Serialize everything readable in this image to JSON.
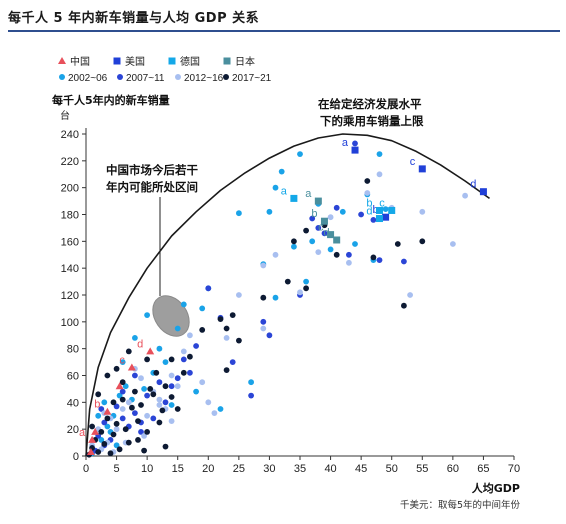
{
  "page": {
    "title": "每千人 5 年内新车销量与人均 GDP 关系"
  },
  "chart_data": {
    "type": "scatter",
    "ylabel": "每千人5年内的新车销量",
    "yunit": "台",
    "xlabel": "人均GDP",
    "xunit_note": "千美元：取每5年的中间年份",
    "xlim": [
      0,
      70
    ],
    "ylim": [
      0,
      240
    ],
    "xticks": [
      0,
      5,
      10,
      15,
      20,
      25,
      30,
      35,
      40,
      45,
      50,
      55,
      60,
      65,
      70
    ],
    "yticks": [
      0,
      20,
      40,
      60,
      80,
      100,
      120,
      140,
      160,
      180,
      200,
      220,
      240
    ],
    "grid": false,
    "legend_position": "top-left",
    "annotations": {
      "upper_limit": [
        "在给定经济发展水平",
        "下的乘用车销量上限"
      ],
      "china_range": [
        "中国市场今后若干",
        "年内可能所处区间"
      ]
    },
    "country_legend": [
      {
        "name": "中国",
        "marker": "triangle",
        "color": "#e8505b"
      },
      {
        "name": "美国",
        "marker": "square",
        "color": "#2040d8"
      },
      {
        "name": "德国",
        "marker": "square",
        "color": "#14a8e8"
      },
      {
        "name": "日本",
        "marker": "square",
        "color": "#4a8f9e"
      }
    ],
    "series": [
      {
        "name": "2002~06",
        "color": "#1aa3e8",
        "points": [
          [
            1.0,
            2
          ],
          [
            2.5,
            12
          ],
          [
            3.5,
            22
          ],
          [
            4.5,
            30
          ],
          [
            5.5,
            45
          ],
          [
            6.5,
            52
          ],
          [
            7.5,
            42
          ],
          [
            2.0,
            30
          ],
          [
            3.0,
            40
          ],
          [
            4.0,
            18
          ],
          [
            5.0,
            8
          ],
          [
            9.5,
            50
          ],
          [
            11,
            62
          ],
          [
            13,
            70
          ],
          [
            15,
            95
          ],
          [
            16,
            113
          ],
          [
            19,
            110
          ],
          [
            20,
            125
          ],
          [
            25,
            181
          ],
          [
            29,
            143
          ],
          [
            30,
            182
          ],
          [
            31,
            200
          ],
          [
            32,
            212
          ],
          [
            35,
            225
          ],
          [
            34,
            156
          ],
          [
            37,
            160
          ],
          [
            38,
            188
          ],
          [
            40,
            154
          ],
          [
            42,
            182
          ],
          [
            44,
            158
          ],
          [
            46,
            195
          ],
          [
            47,
            146
          ],
          [
            48,
            225
          ],
          [
            49,
            184
          ],
          [
            31,
            118
          ],
          [
            36,
            130
          ],
          [
            27,
            55
          ],
          [
            8,
            88
          ],
          [
            10,
            105
          ],
          [
            12,
            80
          ],
          [
            6,
            70
          ],
          [
            14,
            38
          ],
          [
            18,
            48
          ],
          [
            22,
            35
          ]
        ]
      },
      {
        "name": "2007~11",
        "color": "#2b45d6",
        "points": [
          [
            1.5,
            4
          ],
          [
            2.0,
            15
          ],
          [
            3.0,
            25
          ],
          [
            4.0,
            12
          ],
          [
            5.0,
            37
          ],
          [
            6.0,
            28
          ],
          [
            7.0,
            22
          ],
          [
            8.0,
            32
          ],
          [
            9.0,
            18
          ],
          [
            10,
            45
          ],
          [
            11,
            28
          ],
          [
            12,
            55
          ],
          [
            13,
            40
          ],
          [
            14,
            52
          ],
          [
            15,
            58
          ],
          [
            16,
            72
          ],
          [
            18,
            82
          ],
          [
            20,
            125
          ],
          [
            24,
            70
          ],
          [
            27,
            45
          ],
          [
            29,
            100
          ],
          [
            30,
            90
          ],
          [
            35,
            120
          ],
          [
            37,
            177
          ],
          [
            38,
            170
          ],
          [
            39,
            166
          ],
          [
            41,
            185
          ],
          [
            43,
            150
          ],
          [
            44,
            233
          ],
          [
            45,
            180
          ],
          [
            47,
            176
          ],
          [
            48,
            146
          ],
          [
            52,
            145
          ],
          [
            22,
            103
          ],
          [
            17,
            62
          ],
          [
            6,
            48
          ],
          [
            3,
            8
          ],
          [
            2.5,
            35
          ],
          [
            8,
            60
          ],
          [
            9,
            25
          ]
        ]
      },
      {
        "name": "2012~16",
        "color": "#a8bff0",
        "points": [
          [
            1.0,
            8
          ],
          [
            2.0,
            20
          ],
          [
            3.0,
            32
          ],
          [
            3.5,
            10
          ],
          [
            4.0,
            28
          ],
          [
            5.0,
            20
          ],
          [
            6.0,
            35
          ],
          [
            7.0,
            40
          ],
          [
            8.0,
            65
          ],
          [
            9.0,
            58
          ],
          [
            10,
            30
          ],
          [
            11,
            48
          ],
          [
            12,
            42
          ],
          [
            13,
            35
          ],
          [
            14,
            60
          ],
          [
            15,
            52
          ],
          [
            16,
            78
          ],
          [
            17,
            90
          ],
          [
            19,
            55
          ],
          [
            20,
            40
          ],
          [
            21,
            32
          ],
          [
            23,
            88
          ],
          [
            25,
            120
          ],
          [
            29,
            95
          ],
          [
            29,
            142
          ],
          [
            31,
            150
          ],
          [
            35,
            122
          ],
          [
            38,
            152
          ],
          [
            40,
            178
          ],
          [
            43,
            144
          ],
          [
            46,
            196
          ],
          [
            48,
            210
          ],
          [
            50,
            185
          ],
          [
            53,
            120
          ],
          [
            55,
            182
          ],
          [
            60,
            158
          ],
          [
            62,
            194
          ],
          [
            4.5,
            3
          ],
          [
            2.5,
            5
          ],
          [
            9.5,
            15
          ],
          [
            12,
            38
          ],
          [
            14,
            26
          ],
          [
            6.5,
            10
          ]
        ]
      },
      {
        "name": "2017~21",
        "color": "#0d1a33",
        "points": [
          [
            0.5,
            1
          ],
          [
            1.0,
            6
          ],
          [
            1.5,
            12
          ],
          [
            2.0,
            3
          ],
          [
            2.5,
            18
          ],
          [
            3.0,
            9
          ],
          [
            3.5,
            28
          ],
          [
            4.0,
            2
          ],
          [
            4.5,
            16
          ],
          [
            5.0,
            24
          ],
          [
            5.5,
            5
          ],
          [
            6.0,
            42
          ],
          [
            6.5,
            20
          ],
          [
            7.0,
            10
          ],
          [
            7.5,
            36
          ],
          [
            8.0,
            48
          ],
          [
            8.5,
            26
          ],
          [
            9.0,
            38
          ],
          [
            9.5,
            4
          ],
          [
            10,
            18
          ],
          [
            10,
            72
          ],
          [
            11,
            46
          ],
          [
            11.5,
            62
          ],
          [
            12,
            25
          ],
          [
            12.5,
            34
          ],
          [
            13,
            52
          ],
          [
            14,
            72
          ],
          [
            14,
            44
          ],
          [
            15,
            35
          ],
          [
            16,
            62
          ],
          [
            17,
            74
          ],
          [
            19,
            94
          ],
          [
            22,
            102
          ],
          [
            23,
            95
          ],
          [
            23,
            64
          ],
          [
            25,
            86
          ],
          [
            24,
            105
          ],
          [
            29,
            118
          ],
          [
            33,
            130
          ],
          [
            34,
            160
          ],
          [
            36,
            125
          ],
          [
            39,
            172
          ],
          [
            41,
            150
          ],
          [
            46,
            205
          ],
          [
            47,
            148
          ],
          [
            51,
            158
          ],
          [
            52,
            112
          ],
          [
            55,
            160
          ],
          [
            36,
            168
          ],
          [
            2.0,
            46
          ],
          [
            3.5,
            60
          ],
          [
            5.0,
            65
          ],
          [
            6.0,
            55
          ],
          [
            8.5,
            12
          ],
          [
            13,
            7
          ],
          [
            4.5,
            40
          ],
          [
            1.0,
            22
          ],
          [
            10.5,
            50
          ],
          [
            7.0,
            78
          ]
        ]
      }
    ],
    "country_points": [
      {
        "country": "中国",
        "marker": "triangle",
        "color": "#e8505b",
        "points": [
          [
            0.8,
            3
          ],
          [
            1.0,
            12
          ],
          [
            1.5,
            18
          ],
          [
            3.5,
            33
          ],
          [
            5.5,
            52
          ],
          [
            7.5,
            66
          ],
          [
            10.5,
            78
          ]
        ],
        "labels": [
          {
            "text": "a",
            "index": 1
          },
          {
            "text": "b",
            "index": 3
          },
          {
            "text": "c",
            "index": 5
          },
          {
            "text": "d",
            "index": 6
          }
        ]
      },
      {
        "country": "美国",
        "marker": "square",
        "color": "#2040d8",
        "points": [
          [
            44,
            228
          ],
          [
            55,
            214
          ],
          [
            65,
            197
          ],
          [
            49,
            178
          ]
        ],
        "labels": [
          {
            "text": "a",
            "index": 0
          },
          {
            "text": "c",
            "index": 1
          },
          {
            "text": "d",
            "index": 2
          },
          {
            "text": "b",
            "index": 3
          }
        ]
      },
      {
        "country": "德国",
        "marker": "square",
        "color": "#14a8e8",
        "points": [
          [
            34,
            192
          ],
          [
            48,
            183
          ],
          [
            48,
            177
          ],
          [
            50,
            183
          ]
        ],
        "labels": [
          {
            "text": "a",
            "index": 0
          },
          {
            "text": "b",
            "index": 1
          },
          {
            "text": "d",
            "index": 2
          },
          {
            "text": "c",
            "index": 3
          }
        ]
      },
      {
        "country": "日本",
        "marker": "square",
        "color": "#4a8f9e",
        "points": [
          [
            38,
            190
          ],
          [
            39,
            175
          ],
          [
            40,
            165
          ],
          [
            41,
            161
          ]
        ],
        "labels": [
          {
            "text": "a",
            "index": 0
          },
          {
            "text": "b",
            "index": 1
          },
          {
            "text": "c",
            "index": 2
          },
          {
            "text": "d",
            "index": 3
          }
        ]
      }
    ]
  }
}
